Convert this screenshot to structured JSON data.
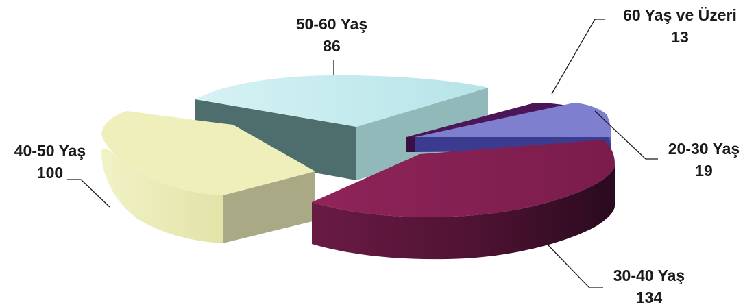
{
  "chart_data": {
    "type": "pie",
    "categories": [
      "20-30 Yaş",
      "30-40 Yaş",
      "40-50 Yaş",
      "50-60 Yaş",
      "60 Yaş ve Üzeri"
    ],
    "values": [
      19,
      134,
      100,
      86,
      13
    ],
    "colors": [
      "#7e7fcf",
      "#8a2155",
      "#eeefba",
      "#bce7ea",
      "#4c1558"
    ],
    "labels": [
      {
        "name": "20-30 Yaş",
        "value": "19"
      },
      {
        "name": "30-40 Yaş",
        "value": "134"
      },
      {
        "name": "40-50 Yaş",
        "value": "100"
      },
      {
        "name": "50-60 Yaş",
        "value": "86"
      },
      {
        "name": "60 Yaş ve Üzeri",
        "value": "13"
      }
    ],
    "style": "exploded-3d"
  }
}
